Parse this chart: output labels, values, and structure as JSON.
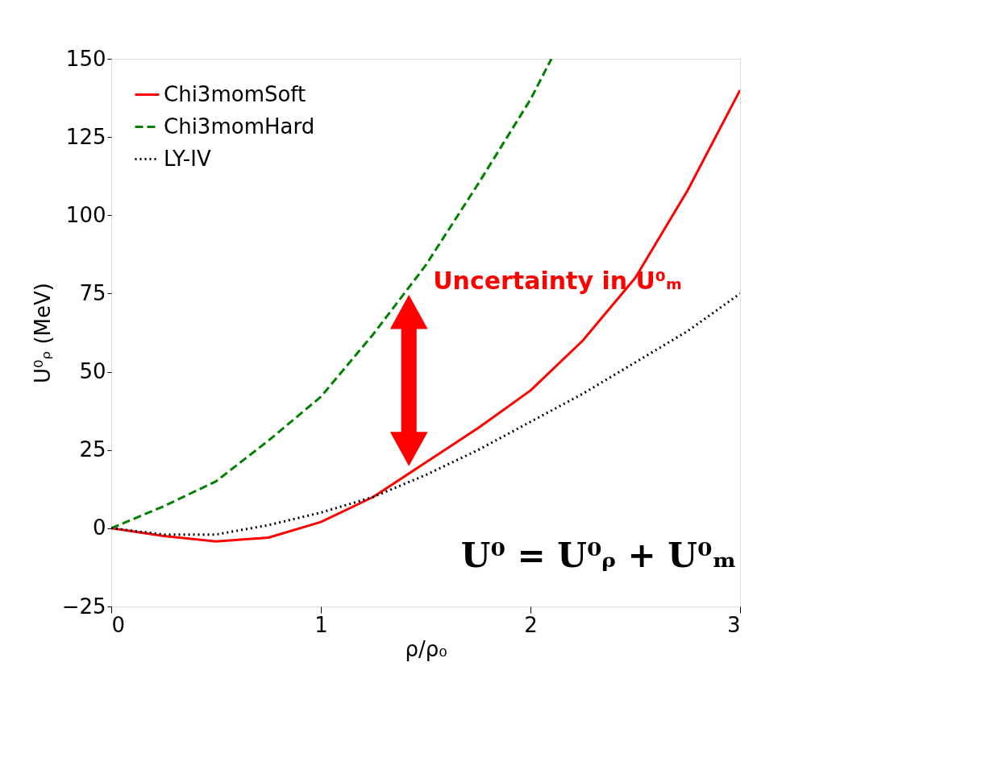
{
  "chart_data": {
    "type": "line",
    "xlabel": "ρ/ρ₀",
    "ylabel": "U⁰ᵨ (MeV)",
    "x": [
      0,
      0.25,
      0.5,
      0.75,
      1,
      1.25,
      1.5,
      1.75,
      2,
      2.25,
      2.5,
      2.75,
      3
    ],
    "series": [
      {
        "name": "Chi3momSoft",
        "color": "#ff0000",
        "line_style": "solid",
        "values": [
          0,
          -2.5,
          -4.2,
          -3,
          2,
          10,
          21,
          32,
          44,
          60,
          80,
          108,
          140
        ]
      },
      {
        "name": "Chi3momHard",
        "color": "#008000",
        "line_style": "dashed",
        "x": [
          0,
          0.25,
          0.5,
          0.75,
          1,
          1.25,
          1.5,
          1.75,
          2,
          2.1
        ],
        "values": [
          0,
          7,
          15,
          28,
          42,
          62,
          84,
          110,
          137,
          150
        ]
      },
      {
        "name": "LY-IV",
        "color": "#000000",
        "line_style": "dotted",
        "values": [
          0,
          -2,
          -2,
          1,
          5,
          10,
          17,
          25,
          34,
          43,
          53,
          63,
          75
        ]
      }
    ],
    "xlim": [
      0,
      3
    ],
    "xticks": [
      0,
      1,
      2,
      3
    ],
    "ylim": [
      -25,
      150
    ],
    "yticks": [
      -25,
      0,
      25,
      50,
      75,
      100,
      125,
      150
    ],
    "grid": false,
    "legend": "top left",
    "marker": "none",
    "annotations": [
      {
        "text": "Uncertainty in U⁰ₘ",
        "x": 1.42,
        "y": 75
      },
      "U⁰ = U⁰ᵨ + U⁰ₘ"
    ]
  }
}
